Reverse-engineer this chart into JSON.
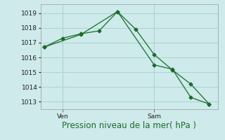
{
  "bg_color": "#ceeaea",
  "grid_color": "#aad4d4",
  "line_color": "#1a6b2a",
  "title": "Pression niveau de la mer( hPa )",
  "ylabel_ticks": [
    1013,
    1014,
    1015,
    1016,
    1017,
    1018,
    1019
  ],
  "ylim": [
    1012.5,
    1019.6
  ],
  "line1_x": [
    0,
    1,
    2,
    3,
    4,
    5,
    6,
    7,
    8,
    9
  ],
  "line1_y": [
    1016.7,
    1017.3,
    1017.6,
    1017.8,
    1019.1,
    1017.9,
    1016.2,
    1015.15,
    1014.2,
    1012.85
  ],
  "line2_x": [
    0,
    2,
    4,
    6,
    7,
    8,
    9
  ],
  "line2_y": [
    1016.7,
    1017.55,
    1019.1,
    1015.5,
    1015.2,
    1013.3,
    1012.85
  ],
  "ven_x": 1.0,
  "sam_x": 6.0,
  "xlim": [
    -0.2,
    9.5
  ],
  "tick_label_fontsize": 6.5,
  "xlabel_fontsize": 8.5,
  "xlabel_color": "#1a6b2a"
}
